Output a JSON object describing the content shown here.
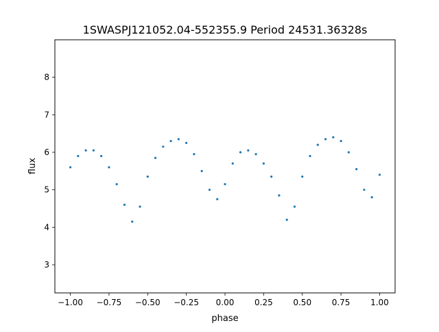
{
  "chart_data": {
    "type": "scatter",
    "title": "1SWASPJ121052.04-552355.9 Period 24531.36328s",
    "xlabel": "phase",
    "ylabel": "flux",
    "xlim": [
      -1.1,
      1.1
    ],
    "ylim": [
      2.25,
      9.0
    ],
    "xticks": [
      -1.0,
      -0.75,
      -0.5,
      -0.25,
      0.0,
      0.25,
      0.5,
      0.75,
      1.0
    ],
    "xtick_labels": [
      "−1.00",
      "−0.75",
      "−0.50",
      "−0.25",
      "0.00",
      "0.25",
      "0.50",
      "0.75",
      "1.00"
    ],
    "yticks": [
      3,
      4,
      5,
      6,
      7,
      8
    ],
    "ytick_labels": [
      "3",
      "4",
      "5",
      "6",
      "7",
      "8"
    ],
    "grid": false,
    "legend": "none",
    "marker_color": "#1f77b4",
    "series": [
      {
        "x": [
          -1.0,
          -0.95,
          -0.9,
          -0.85,
          -0.8,
          -0.75,
          -0.7,
          -0.65,
          -0.6,
          -0.55,
          -0.5,
          -0.45,
          -0.4,
          -0.35,
          -0.3,
          -0.25,
          -0.2,
          -0.15,
          -0.1,
          -0.05,
          0.0,
          0.05,
          0.1,
          0.15,
          0.2,
          0.25,
          0.3,
          0.35,
          0.4,
          0.45,
          0.5,
          0.55,
          0.6,
          0.65,
          0.7,
          0.75,
          0.8,
          0.85,
          0.9,
          0.95,
          1.0
        ],
        "y": [
          5.6,
          5.9,
          6.05,
          6.05,
          5.9,
          5.6,
          5.15,
          4.6,
          4.15,
          4.55,
          5.35,
          5.85,
          6.15,
          6.3,
          6.35,
          6.25,
          5.95,
          5.5,
          5.0,
          4.75,
          5.15,
          5.7,
          6.0,
          6.05,
          5.95,
          5.7,
          5.35,
          4.85,
          4.2,
          4.55,
          5.35,
          5.9,
          6.2,
          6.35,
          6.4,
          6.3,
          6.0,
          5.55,
          5.0,
          4.8,
          5.4
        ]
      }
    ]
  }
}
